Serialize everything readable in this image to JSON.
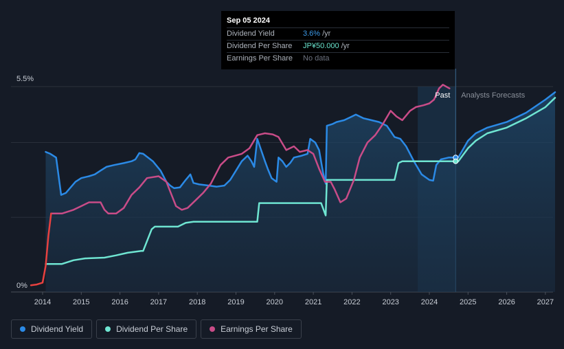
{
  "chart_data": {
    "type": "line",
    "x_axis": {
      "ticks": [
        "2014",
        "2015",
        "2016",
        "2017",
        "2018",
        "2019",
        "2020",
        "2021",
        "2022",
        "2023",
        "2024",
        "2025",
        "2026",
        "2027"
      ],
      "range": [
        2013.6,
        2027.25
      ]
    },
    "y_axis": {
      "range": [
        0,
        5.5
      ],
      "tick_labels": [
        {
          "value": 5.5,
          "label": "5.5%"
        },
        {
          "value": 0,
          "label": "0%"
        }
      ],
      "gridlines": [
        5.5,
        4.0,
        2.0,
        0
      ]
    },
    "labels": {
      "past": "Past",
      "forecast": "Analysts Forecasts"
    },
    "regions": {
      "past_highlight": [
        2023.7,
        2024.68
      ],
      "now": 2024.68
    },
    "tooltip": {
      "date": "Sep 05 2024",
      "rows": [
        {
          "label": "Dividend Yield",
          "value": "3.6%",
          "unit": "/yr"
        },
        {
          "label": "Dividend Per Share",
          "value": "JP¥50.000",
          "unit": "/yr"
        },
        {
          "label": "Earnings Per Share",
          "value": "No data",
          "unit": ""
        }
      ]
    },
    "series": [
      {
        "name": "Dividend Yield",
        "color": "#2b8ae6",
        "fill": true,
        "points": [
          [
            2014.08,
            3.75
          ],
          [
            2014.2,
            3.7
          ],
          [
            2014.35,
            3.6
          ],
          [
            2014.48,
            2.6
          ],
          [
            2014.6,
            2.65
          ],
          [
            2014.85,
            2.95
          ],
          [
            2015.0,
            3.05
          ],
          [
            2015.2,
            3.1
          ],
          [
            2015.35,
            3.15
          ],
          [
            2015.5,
            3.25
          ],
          [
            2015.65,
            3.35
          ],
          [
            2015.85,
            3.4
          ],
          [
            2016.1,
            3.45
          ],
          [
            2016.3,
            3.5
          ],
          [
            2016.4,
            3.55
          ],
          [
            2016.5,
            3.72
          ],
          [
            2016.6,
            3.7
          ],
          [
            2016.85,
            3.5
          ],
          [
            2017.05,
            3.25
          ],
          [
            2017.2,
            2.95
          ],
          [
            2017.3,
            2.85
          ],
          [
            2017.4,
            2.78
          ],
          [
            2017.55,
            2.8
          ],
          [
            2017.7,
            3.0
          ],
          [
            2017.82,
            3.15
          ],
          [
            2017.9,
            2.92
          ],
          [
            2018.05,
            2.88
          ],
          [
            2018.3,
            2.85
          ],
          [
            2018.5,
            2.82
          ],
          [
            2018.7,
            2.85
          ],
          [
            2018.85,
            3.0
          ],
          [
            2019.0,
            3.25
          ],
          [
            2019.15,
            3.5
          ],
          [
            2019.3,
            3.65
          ],
          [
            2019.4,
            3.5
          ],
          [
            2019.47,
            3.35
          ],
          [
            2019.55,
            4.1
          ],
          [
            2019.65,
            3.8
          ],
          [
            2019.75,
            3.5
          ],
          [
            2019.82,
            3.3
          ],
          [
            2019.92,
            3.05
          ],
          [
            2020.05,
            2.95
          ],
          [
            2020.1,
            3.6
          ],
          [
            2020.2,
            3.5
          ],
          [
            2020.3,
            3.35
          ],
          [
            2020.4,
            3.45
          ],
          [
            2020.5,
            3.6
          ],
          [
            2020.7,
            3.65
          ],
          [
            2020.85,
            3.7
          ],
          [
            2020.92,
            4.1
          ],
          [
            2021.05,
            4.0
          ],
          [
            2021.15,
            3.8
          ],
          [
            2021.25,
            3.2
          ],
          [
            2021.32,
            2.9
          ],
          [
            2021.35,
            4.45
          ],
          [
            2021.5,
            4.5
          ],
          [
            2021.6,
            4.55
          ],
          [
            2021.8,
            4.6
          ],
          [
            2022.0,
            4.7
          ],
          [
            2022.1,
            4.75
          ],
          [
            2022.3,
            4.65
          ],
          [
            2022.5,
            4.6
          ],
          [
            2022.7,
            4.55
          ],
          [
            2022.9,
            4.45
          ],
          [
            2023.0,
            4.3
          ],
          [
            2023.1,
            4.15
          ],
          [
            2023.25,
            4.1
          ],
          [
            2023.4,
            3.9
          ],
          [
            2023.6,
            3.5
          ],
          [
            2023.8,
            3.15
          ],
          [
            2024.0,
            3.0
          ],
          [
            2024.1,
            2.98
          ],
          [
            2024.18,
            3.4
          ],
          [
            2024.3,
            3.55
          ],
          [
            2024.5,
            3.6
          ],
          [
            2024.68,
            3.6
          ],
          [
            2024.75,
            3.6
          ],
          [
            2025.0,
            4.05
          ],
          [
            2025.2,
            4.25
          ],
          [
            2025.5,
            4.4
          ],
          [
            2026.0,
            4.55
          ],
          [
            2026.5,
            4.8
          ],
          [
            2027.0,
            5.15
          ],
          [
            2027.25,
            5.35
          ]
        ]
      },
      {
        "name": "Dividend Per Share",
        "color": "#6fe5d2",
        "fill": false,
        "points": [
          [
            2014.08,
            0.75
          ],
          [
            2014.5,
            0.75
          ],
          [
            2014.8,
            0.85
          ],
          [
            2015.1,
            0.9
          ],
          [
            2015.6,
            0.92
          ],
          [
            2015.9,
            0.98
          ],
          [
            2016.2,
            1.05
          ],
          [
            2016.55,
            1.1
          ],
          [
            2016.6,
            1.1
          ],
          [
            2016.82,
            1.68
          ],
          [
            2016.9,
            1.75
          ],
          [
            2017.5,
            1.75
          ],
          [
            2017.7,
            1.85
          ],
          [
            2017.9,
            1.88
          ],
          [
            2019.55,
            1.88
          ],
          [
            2019.6,
            2.38
          ],
          [
            2021.2,
            2.38
          ],
          [
            2021.32,
            2.05
          ],
          [
            2021.35,
            3.0
          ],
          [
            2023.1,
            3.0
          ],
          [
            2023.2,
            3.45
          ],
          [
            2023.3,
            3.5
          ],
          [
            2024.68,
            3.5
          ],
          [
            2024.75,
            3.5
          ],
          [
            2025.0,
            3.85
          ],
          [
            2025.2,
            4.05
          ],
          [
            2025.5,
            4.25
          ],
          [
            2026.0,
            4.4
          ],
          [
            2026.5,
            4.65
          ],
          [
            2027.0,
            4.95
          ],
          [
            2027.25,
            5.2
          ]
        ]
      },
      {
        "name": "Earnings Per Share",
        "color": "#c94c88",
        "fill": false,
        "points": [
          [
            2014.22,
            2.1
          ],
          [
            2014.5,
            2.1
          ],
          [
            2014.8,
            2.2
          ],
          [
            2015.0,
            2.3
          ],
          [
            2015.2,
            2.4
          ],
          [
            2015.5,
            2.4
          ],
          [
            2015.6,
            2.2
          ],
          [
            2015.7,
            2.1
          ],
          [
            2015.9,
            2.1
          ],
          [
            2016.1,
            2.25
          ],
          [
            2016.3,
            2.6
          ],
          [
            2016.5,
            2.8
          ],
          [
            2016.7,
            3.05
          ],
          [
            2017.0,
            3.1
          ],
          [
            2017.2,
            2.95
          ],
          [
            2017.45,
            2.3
          ],
          [
            2017.6,
            2.2
          ],
          [
            2017.75,
            2.25
          ],
          [
            2017.95,
            2.45
          ],
          [
            2018.15,
            2.65
          ],
          [
            2018.35,
            2.9
          ],
          [
            2018.6,
            3.4
          ],
          [
            2018.8,
            3.6
          ],
          [
            2018.98,
            3.65
          ],
          [
            2019.15,
            3.7
          ],
          [
            2019.35,
            3.85
          ],
          [
            2019.55,
            4.2
          ],
          [
            2019.75,
            4.25
          ],
          [
            2019.95,
            4.22
          ],
          [
            2020.1,
            4.15
          ],
          [
            2020.3,
            3.8
          ],
          [
            2020.5,
            3.9
          ],
          [
            2020.65,
            3.75
          ],
          [
            2020.85,
            3.8
          ],
          [
            2021.0,
            3.7
          ],
          [
            2021.15,
            3.3
          ],
          [
            2021.3,
            2.95
          ],
          [
            2021.45,
            2.95
          ],
          [
            2021.55,
            2.75
          ],
          [
            2021.7,
            2.4
          ],
          [
            2021.85,
            2.5
          ],
          [
            2022.05,
            3.0
          ],
          [
            2022.2,
            3.6
          ],
          [
            2022.4,
            4.0
          ],
          [
            2022.6,
            4.2
          ],
          [
            2022.8,
            4.5
          ],
          [
            2023.0,
            4.85
          ],
          [
            2023.15,
            4.7
          ],
          [
            2023.3,
            4.6
          ],
          [
            2023.5,
            4.85
          ],
          [
            2023.65,
            4.95
          ],
          [
            2023.85,
            5.0
          ],
          [
            2024.0,
            5.05
          ],
          [
            2024.12,
            5.15
          ],
          [
            2024.25,
            5.45
          ],
          [
            2024.35,
            5.55
          ],
          [
            2024.52,
            5.45
          ]
        ]
      },
      {
        "name": "Earnings Per Share (early)",
        "color": "#e8413f",
        "fill": false,
        "points": [
          [
            2013.7,
            0.18
          ],
          [
            2013.85,
            0.2
          ],
          [
            2014.0,
            0.25
          ],
          [
            2014.08,
            0.7
          ],
          [
            2014.15,
            1.5
          ],
          [
            2014.22,
            2.1
          ]
        ]
      }
    ],
    "markers": [
      {
        "series": "Dividend Yield",
        "x": 2024.68,
        "y": 3.6,
        "color": "#2b8ae6"
      },
      {
        "series": "Dividend Per Share",
        "x": 2024.68,
        "y": 3.5,
        "color": "#6fe5d2"
      }
    ]
  },
  "legend": [
    {
      "label": "Dividend Yield",
      "color": "#2b8ae6"
    },
    {
      "label": "Dividend Per Share",
      "color": "#6fe5d2"
    },
    {
      "label": "Earnings Per Share",
      "color": "#c94c88"
    }
  ]
}
